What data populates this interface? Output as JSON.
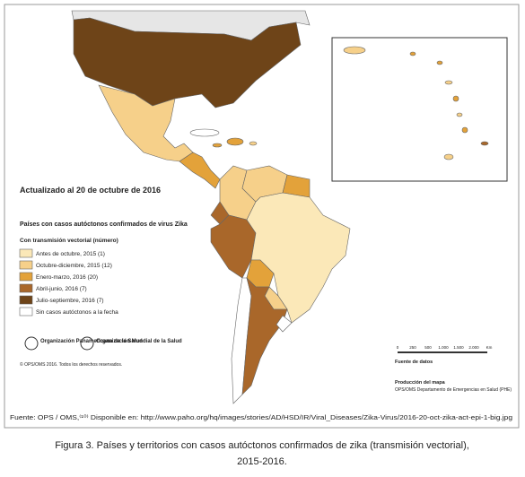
{
  "map": {
    "updated": "Actualizado al 20 de octubre de 2016",
    "legend_title": "Países con casos autóctonos confirmados de virus Zika",
    "legend_subtitle": "Con transmisión vectorial (número)",
    "legend": [
      {
        "label": "Antes de octubre, 2015 (1)",
        "color": "#fbe8b8"
      },
      {
        "label": "Octubre-diciembre, 2015 (12)",
        "color": "#f6d08a"
      },
      {
        "label": "Enero-marzo, 2016 (20)",
        "color": "#e3a23a"
      },
      {
        "label": "Abril-junio, 2016 (7)",
        "color": "#a9672a"
      },
      {
        "label": "Julio-septiembre, 2016 (7)",
        "color": "#6e4418"
      },
      {
        "label": "Sin casos autóctonos a la fecha",
        "color": "#ffffff"
      }
    ],
    "logo_ops": "Organización Panamericana de la Salud",
    "logo_oms": "Organización Mundial de la Salud",
    "copyright": "© OPS/OMS 2016. Todos los derechos reservados.",
    "data_source_title": "Fuente de datos",
    "production_title": "Producción del mapa",
    "production": "OPS/OMS Departamento de Emergencias en Salud (PHE)",
    "scale": [
      "0",
      "250",
      "500",
      "1.000",
      "1.500",
      "2.000",
      "Km"
    ],
    "source": "Fuente: OPS / OMS,⁽¹⁰⁾ Disponible en: http://www.paho.org/hq/images/stories/AD/HSD/IR/Viral_Diseases/Zika-Virus/2016-20-oct-zika-act-epi-1-big.jpg",
    "caption_line1": "Figura 3. Países y territorios con casos autóctonos confirmados de zika (transmisión vectorial),",
    "caption_line2": "2015-2016."
  }
}
